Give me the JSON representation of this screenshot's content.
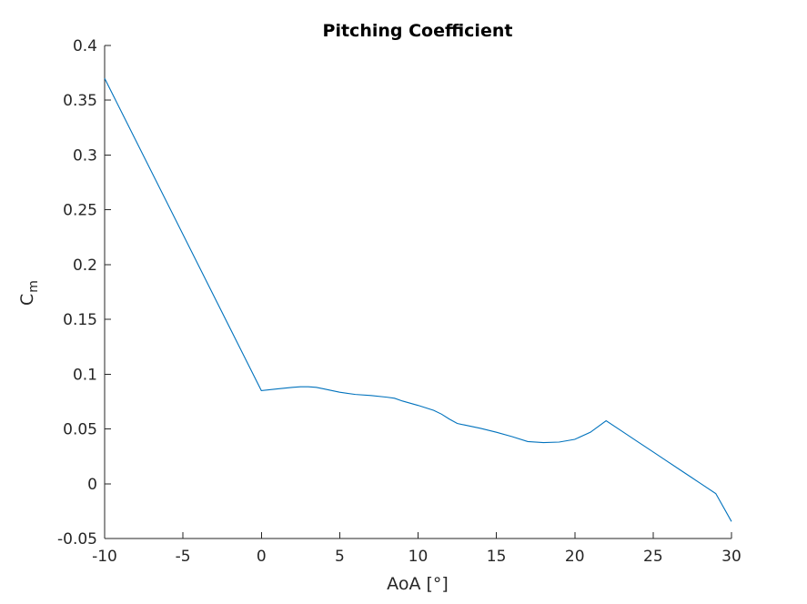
{
  "chart_data": {
    "type": "line",
    "title": "Pitching Coefficient",
    "xlabel": "AoA [°]",
    "ylabel_main": "C",
    "ylabel_sub": "m",
    "xlim": [
      -10,
      30
    ],
    "ylim": [
      -0.05,
      0.4
    ],
    "xticks": [
      -10,
      -5,
      0,
      5,
      10,
      15,
      20,
      25,
      30
    ],
    "xtick_labels": [
      "-10",
      "-5",
      "0",
      "5",
      "10",
      "15",
      "20",
      "25",
      "30"
    ],
    "yticks": [
      -0.05,
      0,
      0.05,
      0.1,
      0.15,
      0.2,
      0.25,
      0.3,
      0.35,
      0.4
    ],
    "ytick_labels": [
      "-0.05",
      "0",
      "0.05",
      "0.1",
      "0.15",
      "0.2",
      "0.25",
      "0.3",
      "0.35",
      "0.4"
    ],
    "grid": false,
    "series": [
      {
        "color": "#0072bd",
        "x": [
          -10,
          0,
          1,
          2,
          2.5,
          3,
          3.5,
          4,
          5,
          6,
          7,
          8,
          8.5,
          9,
          10,
          11,
          11.5,
          12,
          12.5,
          13,
          14,
          15,
          16,
          17,
          18,
          19,
          20,
          21,
          22,
          23,
          24,
          25,
          26,
          27,
          28,
          29,
          30
        ],
        "y": [
          0.37,
          0.085,
          0.0865,
          0.088,
          0.0885,
          0.0885,
          0.088,
          0.0865,
          0.0835,
          0.0815,
          0.0805,
          0.079,
          0.078,
          0.0755,
          0.0715,
          0.067,
          0.0635,
          0.059,
          0.055,
          0.0535,
          0.0505,
          0.047,
          0.043,
          0.0385,
          0.0375,
          0.038,
          0.0405,
          0.047,
          0.0575,
          0.048,
          0.0385,
          0.029,
          0.0195,
          0.01,
          0.0005,
          -0.009,
          -0.0345
        ]
      }
    ]
  }
}
